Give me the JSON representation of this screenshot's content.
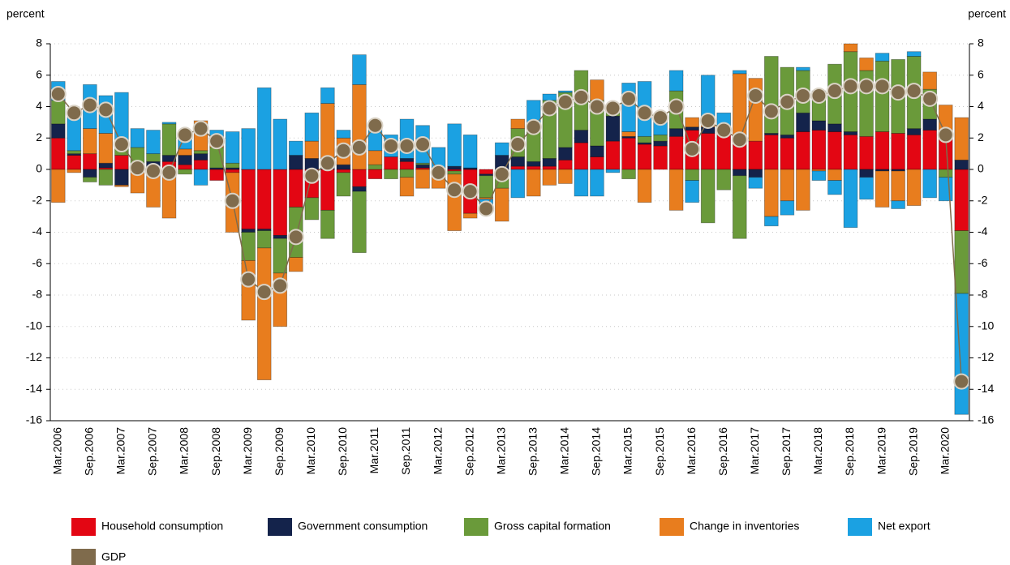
{
  "chart_data": {
    "type": "bar",
    "stacked": true,
    "y_label": "percent",
    "y2_label": "percent",
    "categories": [
      "Mar.2006",
      null,
      "Sep.2006",
      null,
      "Mar.2007",
      null,
      "Sep.2007",
      null,
      "Mar.2008",
      null,
      "Sep.2008",
      null,
      "Mar.2009",
      null,
      "Sep.2009",
      null,
      "Mar.2010",
      null,
      "Sep.2010",
      null,
      "Mar.2011",
      null,
      "Sep.2011",
      null,
      "Mar.2012",
      null,
      "Sep.2012",
      null,
      "Mar.2013",
      null,
      "Sep.2013",
      null,
      "Mar.2014",
      null,
      "Sep.2014",
      null,
      "Mar.2015",
      null,
      "Sep.2015",
      null,
      "Mar.2016",
      null,
      "Sep.2016",
      null,
      "Mar.2017",
      null,
      "Sep.2017",
      null,
      "Mar.2018",
      null,
      "Sep.2018",
      null,
      "Mar.2019",
      null,
      "Sep.2019",
      null,
      "Mar.2020",
      null
    ],
    "series": [
      {
        "name": "Household consumption",
        "color": "#e30613",
        "values": [
          2.0,
          0.9,
          1.0,
          0.1,
          0.9,
          0,
          0.2,
          0.5,
          0.3,
          0.6,
          -0.7,
          -0.2,
          -3.8,
          -3.8,
          -4.2,
          -2.4,
          -1.8,
          -2.6,
          -0.2,
          -1.1,
          -0.6,
          0.8,
          0.5,
          0.1,
          -0.1,
          -0.1,
          -2.8,
          -0.3,
          0,
          0.2,
          0.2,
          0.2,
          0.6,
          1.7,
          0.8,
          1.8,
          2.0,
          1.6,
          1.5,
          2.1,
          2.5,
          2.3,
          2.3,
          2.1,
          1.8,
          2.2,
          2.0,
          2.4,
          2.5,
          2.4,
          2.2,
          2.1,
          2.4,
          2.3,
          2.2,
          2.5,
          2.2,
          -3.9
        ]
      },
      {
        "name": "Government consumption",
        "color": "#14234b",
        "values": [
          0.9,
          0.1,
          -0.5,
          0.3,
          -1.0,
          0,
          0.3,
          0.4,
          0.6,
          0.4,
          0.1,
          0.1,
          -0.2,
          -0.1,
          -0.2,
          0.9,
          0.7,
          0.7,
          0.3,
          -0.3,
          0,
          0,
          0.2,
          0.2,
          0,
          0.2,
          0.1,
          -0.1,
          0.9,
          0.6,
          0.3,
          0.5,
          0.8,
          0.8,
          0.7,
          1.6,
          0.1,
          0.1,
          0.3,
          0.5,
          0.2,
          0.4,
          0.4,
          -0.4,
          -0.5,
          0.1,
          0.2,
          1.2,
          0.6,
          0.5,
          0.2,
          -0.5,
          -0.1,
          -0.1,
          0.4,
          0.7,
          0.1,
          0.6
        ]
      },
      {
        "name": "Gross capital formation",
        "color": "#6a9a3a",
        "values": [
          1.5,
          0.2,
          -0.3,
          -1.0,
          0.5,
          1.4,
          0.5,
          2.0,
          -0.3,
          0.2,
          1.3,
          0.3,
          -1.8,
          -1.1,
          -2.2,
          -3.2,
          -1.4,
          -1.8,
          -1.5,
          -3.9,
          0.3,
          -0.6,
          -0.5,
          0.1,
          -0.3,
          -0.2,
          0,
          -1.4,
          -1.2,
          1.8,
          2.1,
          3.7,
          3.5,
          3.8,
          2.9,
          0.6,
          -0.6,
          0.4,
          0.4,
          2.4,
          -0.7,
          -3.4,
          -1.3,
          -4.0,
          0,
          4.9,
          4.3,
          2.7,
          1.9,
          3.8,
          5.1,
          4.2,
          4.5,
          4.7,
          4.6,
          1.9,
          -0.5,
          -4.0
        ]
      },
      {
        "name": "Change in inventories",
        "color": "#e87d1e",
        "values": [
          -2.1,
          -0.2,
          1.6,
          1.9,
          -0.1,
          -1.5,
          -2.4,
          -3.1,
          0.4,
          1.9,
          0.2,
          -3.8,
          -3.8,
          -8.4,
          -3.4,
          -0.9,
          1.1,
          3.5,
          1.7,
          5.4,
          0.9,
          0,
          -1.2,
          -1.2,
          -0.8,
          -3.6,
          -0.3,
          -0.1,
          -2.1,
          0.6,
          -1.7,
          -1.0,
          -0.9,
          0,
          1.3,
          0,
          0.3,
          -2.1,
          0,
          -2.6,
          0.6,
          0.3,
          0,
          4.0,
          4.0,
          -3.0,
          -2.0,
          -2.6,
          -0.1,
          -0.7,
          0.5,
          0.8,
          -2.3,
          -1.9,
          -2.3,
          1.1,
          1.8,
          2.7
        ]
      },
      {
        "name": "Net export",
        "color": "#1ba1e2",
        "values": [
          1.2,
          2.6,
          2.8,
          2.4,
          3.5,
          1.2,
          1.5,
          0.1,
          0.9,
          -1.0,
          0.9,
          2.0,
          2.6,
          5.2,
          3.2,
          0.9,
          1.8,
          1.0,
          0.5,
          1.9,
          1.6,
          1.4,
          2.5,
          2.4,
          1.4,
          2.7,
          2.1,
          -0.5,
          0.8,
          -1.8,
          1.8,
          0.4,
          0.1,
          -1.7,
          -1.7,
          -0.2,
          3.1,
          3.5,
          1.1,
          1.3,
          -1.4,
          3.0,
          0.9,
          0.2,
          -0.7,
          -0.6,
          -0.9,
          0.2,
          -0.6,
          -0.9,
          -3.7,
          -1.4,
          0.5,
          -0.5,
          0.3,
          -1.8,
          -1.5,
          -7.7
        ]
      },
      {
        "name": "GDP",
        "type": "line",
        "color": "#7f6b4c",
        "values": [
          4.8,
          3.6,
          4.1,
          3.8,
          1.6,
          0.1,
          -0.1,
          -0.2,
          2.2,
          2.6,
          1.8,
          -2.0,
          -7.0,
          -7.8,
          -7.4,
          -4.3,
          -0.4,
          0.4,
          1.2,
          1.4,
          2.8,
          1.5,
          1.5,
          1.6,
          -0.2,
          -1.3,
          -1.4,
          -2.5,
          -0.3,
          1.6,
          2.7,
          3.9,
          4.3,
          4.6,
          4.0,
          3.9,
          4.5,
          3.6,
          3.3,
          4.0,
          1.3,
          3.1,
          2.5,
          1.9,
          4.7,
          3.7,
          4.3,
          4.7,
          4.7,
          5.0,
          5.3,
          5.3,
          5.3,
          4.9,
          5.0,
          4.5,
          2.2,
          -13.5
        ]
      }
    ],
    "ylim": [
      -16,
      8
    ],
    "yticks": [
      -16,
      -14,
      -12,
      -10,
      -8,
      -6,
      -4,
      -2,
      0,
      2,
      4,
      6,
      8
    ],
    "y2lim": [
      -16,
      8
    ],
    "y2ticks": [
      -16,
      -14,
      -12,
      -10,
      -8,
      -6,
      -4,
      -2,
      0,
      2,
      4,
      6,
      8
    ],
    "grid": true,
    "legend": "bottom"
  }
}
